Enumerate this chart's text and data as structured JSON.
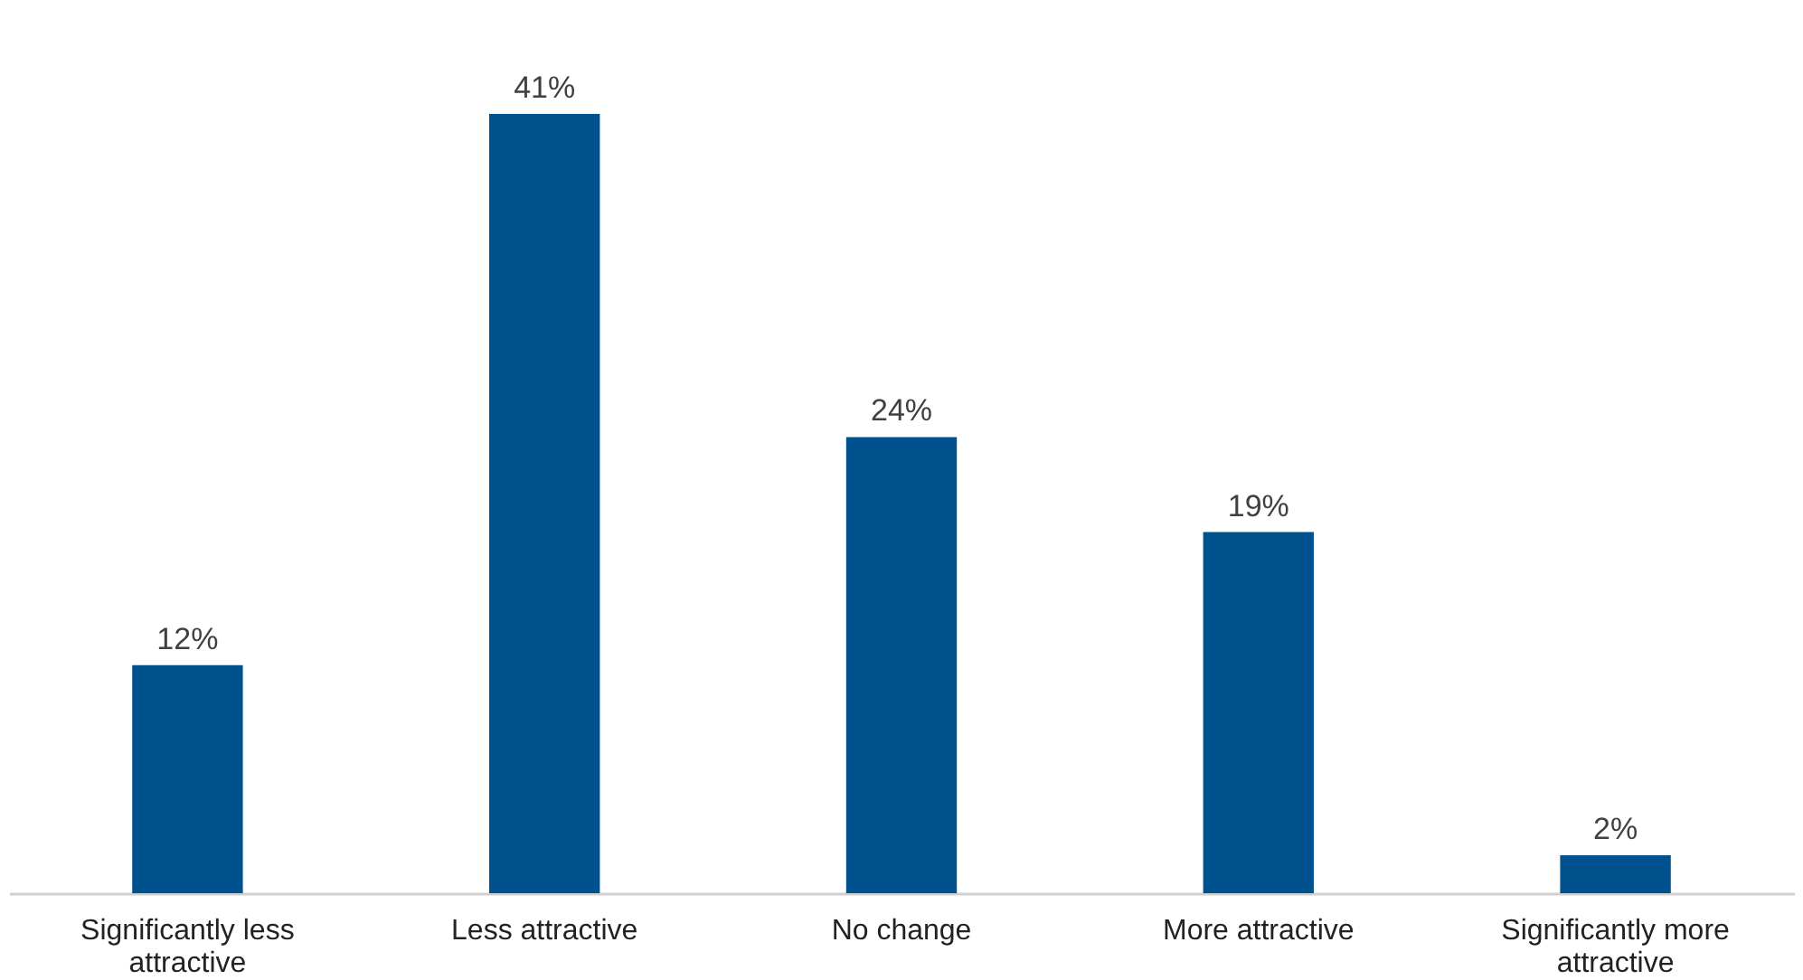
{
  "chart_data": {
    "type": "bar",
    "categories": [
      "Significantly less attractive",
      "Less attractive",
      "No change",
      "More attractive",
      "Significantly more attractive"
    ],
    "values": [
      12,
      41,
      24,
      19,
      2
    ],
    "value_labels": [
      "12%",
      "41%",
      "24%",
      "19%",
      "2%"
    ],
    "color": "#00528f",
    "grid": false
  }
}
